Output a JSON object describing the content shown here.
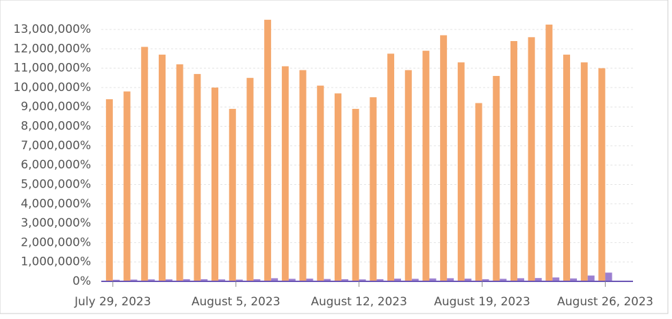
{
  "chart_data": {
    "type": "bar",
    "categories": [
      "July 29, 2023",
      null,
      null,
      null,
      null,
      null,
      null,
      "August 5, 2023",
      null,
      null,
      null,
      null,
      null,
      null,
      "August 12, 2023",
      null,
      null,
      null,
      null,
      null,
      null,
      "August 19, 2023",
      null,
      null,
      null,
      null,
      null,
      null,
      "August 26, 2023"
    ],
    "series": [
      {
        "color": "#f4a76c",
        "values": [
          9400000,
          9800000,
          12100000,
          11700000,
          11200000,
          10700000,
          10000000,
          8900000,
          10500000,
          13500000,
          11100000,
          10900000,
          10100000,
          9700000,
          8900000,
          9500000,
          11750000,
          10900000,
          11900000,
          12700000,
          11300000,
          9200000,
          10600000,
          12400000,
          12600000,
          13250000,
          11700000,
          11300000,
          11000000
        ]
      },
      {
        "color": "#9b7fd0",
        "values": [
          80000,
          90000,
          100000,
          100000,
          110000,
          110000,
          100000,
          90000,
          110000,
          160000,
          130000,
          140000,
          120000,
          110000,
          100000,
          110000,
          140000,
          130000,
          150000,
          160000,
          140000,
          110000,
          130000,
          160000,
          170000,
          200000,
          150000,
          300000,
          450000
        ]
      }
    ],
    "ylim": [
      0,
      13000000
    ],
    "yticks": [
      {
        "value": 0,
        "label": "0%"
      },
      {
        "value": 1000000,
        "label": "1,000,000%"
      },
      {
        "value": 2000000,
        "label": "2,000,000%"
      },
      {
        "value": 3000000,
        "label": "3,000,000%"
      },
      {
        "value": 4000000,
        "label": "4,000,000%"
      },
      {
        "value": 5000000,
        "label": "5,000,000%"
      },
      {
        "value": 6000000,
        "label": "6,000,000%"
      },
      {
        "value": 7000000,
        "label": "7,000,000%"
      },
      {
        "value": 8000000,
        "label": "8,000,000%"
      },
      {
        "value": 9000000,
        "label": "9,000,000%"
      },
      {
        "value": 10000000,
        "label": "10,000,000%"
      },
      {
        "value": 11000000,
        "label": "11,000,000%"
      },
      {
        "value": 12000000,
        "label": "12,000,000%"
      },
      {
        "value": 13000000,
        "label": "13,000,000%"
      }
    ],
    "grid": true
  }
}
